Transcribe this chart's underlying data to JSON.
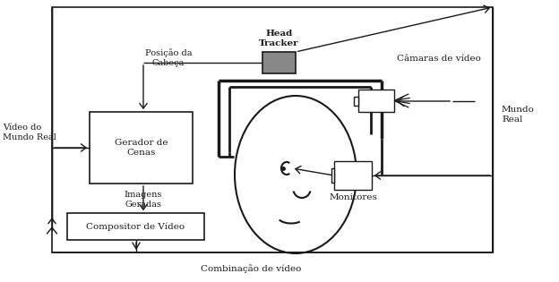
{
  "bg_color": "#ffffff",
  "line_color": "#1a1a1a",
  "tracker_fill": "#888888",
  "labels": {
    "video_mundo": "Vídeo do\nMundo Real",
    "posicao": "Posição da\nCabeça",
    "head_tracker": "Head\nTracker",
    "cameras": "Câmaras de vídeo",
    "mundo_real": "Mundo\nReal",
    "gerador": "Gerador de\nCenas",
    "imagens": "Imagens\nGeradas",
    "compositor": "Compositor de Vídeo",
    "monitores": "Monitores",
    "combinacao": "Combinação de vídeo"
  },
  "figsize": [
    6.24,
    3.15
  ],
  "dpi": 100
}
